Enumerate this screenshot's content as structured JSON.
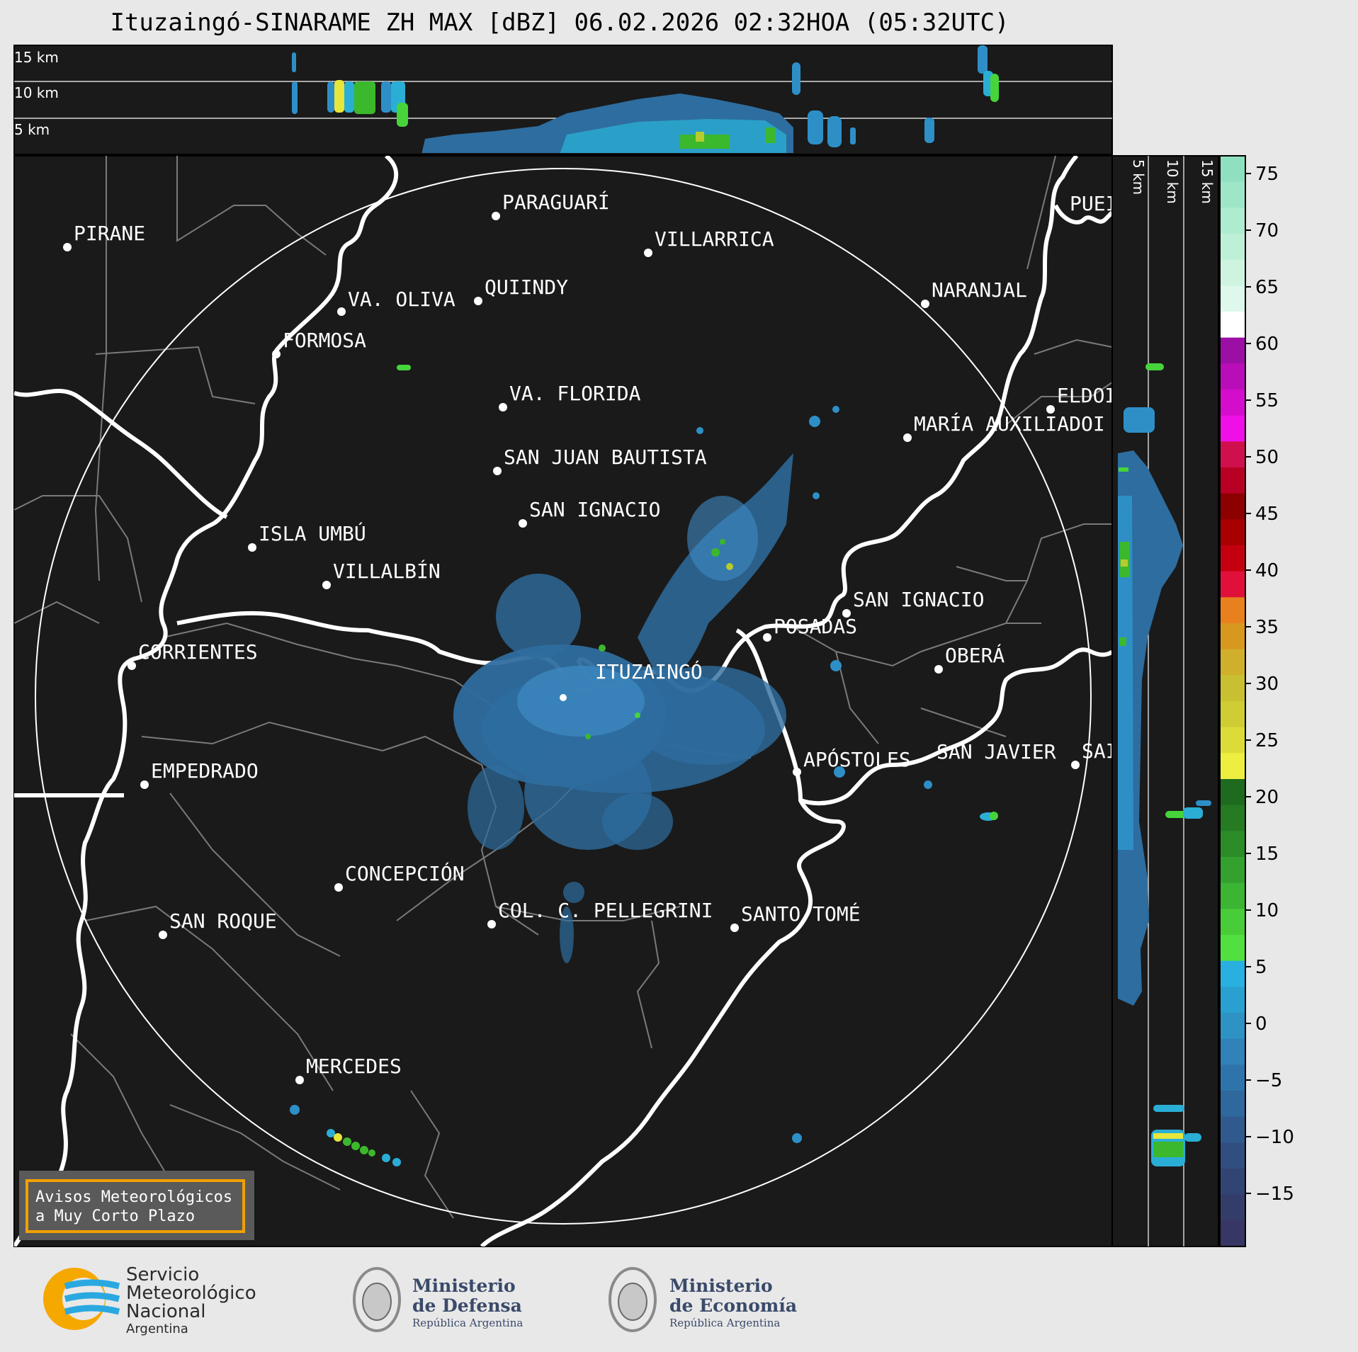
{
  "title": "Ituzaingó-SINARAME ZH MAX [dBZ] 06.02.2026 02:32HOA (05:32UTC)",
  "top_panel": {
    "height_labels": [
      "15 km",
      "10 km",
      "5 km"
    ]
  },
  "side_panel": {
    "height_labels": [
      "5 km",
      "10 km",
      "15 km"
    ]
  },
  "colorbar": {
    "ticks": [
      "75",
      "70",
      "65",
      "60",
      "55",
      "50",
      "45",
      "40",
      "35",
      "30",
      "25",
      "20",
      "15",
      "10",
      "5",
      "0",
      "−5",
      "−10",
      "−15"
    ]
  },
  "cities": [
    {
      "name": "PARAGUARÍ"
    },
    {
      "name": "PIRANE"
    },
    {
      "name": "VILLARRICA"
    },
    {
      "name": "PUEI"
    },
    {
      "name": "QUIINDY"
    },
    {
      "name": "VA. OLIVA"
    },
    {
      "name": "NARANJAL"
    },
    {
      "name": "FORMOSA"
    },
    {
      "name": "ELDOI"
    },
    {
      "name": "VA. FLORIDA"
    },
    {
      "name": "MARÍA AUXILIADOI"
    },
    {
      "name": "SAN JUAN BAUTISTA"
    },
    {
      "name": "SAN IGNACIO"
    },
    {
      "name": "ISLA UMBÚ"
    },
    {
      "name": "VILLALBÍN"
    },
    {
      "name": "SAN IGNACIO"
    },
    {
      "name": "POSADAS"
    },
    {
      "name": "CORRIENTES"
    },
    {
      "name": "ITUZAINGÓ"
    },
    {
      "name": "OBERÁ"
    },
    {
      "name": "APÓSTOLES"
    },
    {
      "name": "SAN JAVIER"
    },
    {
      "name": "SAI"
    },
    {
      "name": "EMPEDRADO"
    },
    {
      "name": "CONCEPCIÓN"
    },
    {
      "name": "COL. C. PELLEGRINI"
    },
    {
      "name": "SANTO TOMÉ"
    },
    {
      "name": "SAN ROQUE"
    },
    {
      "name": "MERCEDES"
    }
  ],
  "notice": {
    "line1": "Avisos Meteorológicos",
    "line2": "a Muy Corto Plazo"
  },
  "logos": {
    "smn": {
      "line1": "Servicio",
      "line2": "Meteorológico",
      "line3": "Nacional",
      "line4": "Argentina"
    },
    "defensa": {
      "line1": "Ministerio",
      "line2": "de Defensa",
      "line3": "República Argentina"
    },
    "economia": {
      "line1": "Ministerio",
      "line2": "de Economía",
      "line3": "República Argentina"
    }
  },
  "colors": {
    "background": "#1a1a1a",
    "notice_border": "#f0a000"
  }
}
